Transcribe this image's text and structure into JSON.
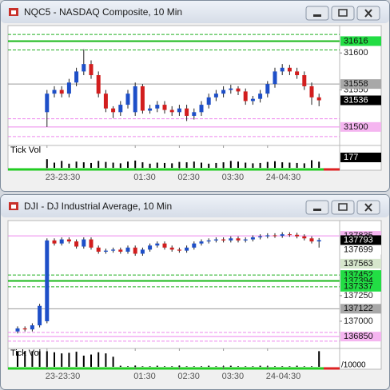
{
  "chart_data": [
    {
      "type": "candlestick",
      "title": "NQC5 - NASDAQ Composite, 10 Min",
      "up_color": "#1e4fc8",
      "down_color": "#d21e1e",
      "ylim": [
        31475,
        31637
      ],
      "yticks": [
        31550,
        31600
      ],
      "xticks": [
        {
          "value": 4,
          "label": "23-23:30"
        },
        {
          "value": 16,
          "label": "01:30"
        },
        {
          "value": 22,
          "label": "02:30"
        },
        {
          "value": 28,
          "label": "03:30"
        },
        {
          "value": 34,
          "label": "24-04:30"
        }
      ],
      "open": [
        null,
        null,
        null,
        null,
        31520,
        31545,
        31550,
        31545,
        31560,
        31575,
        31585,
        31570,
        31545,
        31525,
        31520,
        31530,
        31520,
        31555,
        31522,
        31525,
        31530,
        31523,
        31520,
        31525,
        31515,
        31520,
        31530,
        31540,
        31545,
        31550,
        31552,
        31548,
        31535,
        31538,
        31545,
        31558,
        31575,
        31580,
        31575,
        31570,
        31555,
        31540
      ],
      "high": [
        null,
        null,
        null,
        null,
        31550,
        31555,
        31555,
        31565,
        31580,
        31605,
        31590,
        31575,
        31550,
        31528,
        31535,
        31550,
        31560,
        31558,
        31530,
        31535,
        31535,
        31528,
        31530,
        31530,
        31525,
        31535,
        31545,
        31550,
        31555,
        31557,
        31555,
        31552,
        31542,
        31550,
        31562,
        31580,
        31585,
        31584,
        31580,
        31575,
        31560,
        31545
      ],
      "low": [
        null,
        null,
        null,
        null,
        31500,
        31540,
        31540,
        31540,
        31555,
        31570,
        31565,
        31540,
        31520,
        31512,
        31515,
        31525,
        31515,
        31518,
        31518,
        31520,
        31518,
        31515,
        31515,
        31508,
        31510,
        31515,
        31525,
        31535,
        31540,
        31545,
        31543,
        31530,
        31530,
        31533,
        31540,
        31553,
        31570,
        31570,
        31565,
        31550,
        31530,
        31528
      ],
      "close": [
        null,
        null,
        null,
        null,
        31545,
        31550,
        31545,
        31560,
        31575,
        31585,
        31570,
        31545,
        31525,
        31520,
        31530,
        31545,
        31555,
        31522,
        31525,
        31530,
        31523,
        31520,
        31525,
        31515,
        31520,
        31530,
        31540,
        31545,
        31550,
        31552,
        31548,
        31535,
        31538,
        31545,
        31558,
        31575,
        31580,
        31575,
        31570,
        31555,
        31540,
        31536
      ],
      "levels": [
        {
          "value": 31625,
          "color": "#20b020",
          "style": "dashed",
          "width": 1,
          "show_label": false
        },
        {
          "value": 31616,
          "color": "#18b818",
          "style": "solid",
          "width": 2,
          "show_label": true,
          "label_bg": "#22dd44"
        },
        {
          "value": 31604,
          "color": "#20b020",
          "style": "dashed",
          "width": 1,
          "show_label": false
        },
        {
          "value": 31558,
          "color": "#9a9a9a",
          "style": "solid",
          "width": 1,
          "show_label": true,
          "label_bg": "#a8a8a8"
        },
        {
          "value": 31511,
          "color": "#ee88ee",
          "style": "dashed",
          "width": 1,
          "show_label": false
        },
        {
          "value": 31500,
          "color": "#ee88ee",
          "style": "solid",
          "width": 1,
          "show_label": true,
          "label_bg": "#f5b5f0"
        },
        {
          "value": 31487,
          "color": "#ee88ee",
          "style": "dashed",
          "width": 1,
          "show_label": false
        }
      ],
      "tick_vol": {
        "label": "Tick Vol",
        "color": "#000000",
        "ylim": [
          0,
          600
        ],
        "values": [
          null,
          null,
          null,
          null,
          250,
          150,
          200,
          120,
          180,
          160,
          140,
          200,
          170,
          150,
          130,
          180,
          210,
          160,
          120,
          150,
          140,
          130,
          170,
          160,
          180,
          150,
          120,
          140,
          160,
          200,
          180,
          150,
          130,
          140,
          170,
          190,
          160,
          150,
          140,
          130,
          220,
          177
        ]
      }
    },
    {
      "type": "candlestick",
      "title": "DJI - DJ Industrial Average, 10 Min",
      "up_color": "#1e4fc8",
      "down_color": "#d21e1e",
      "ylim": [
        136734,
        137984
      ],
      "yticks": [
        137000,
        137250
      ],
      "xticks": [
        {
          "value": 4,
          "label": "23-23:30"
        },
        {
          "value": 16,
          "label": "01:30"
        },
        {
          "value": 22,
          "label": "02:30"
        },
        {
          "value": 28,
          "label": "03:30"
        },
        {
          "value": 34,
          "label": "24-04:30"
        }
      ],
      "open": [
        136900,
        136930,
        136920,
        136960,
        137000,
        137790,
        137760,
        137800,
        137780,
        137730,
        137800,
        137720,
        137680,
        137690,
        137700,
        137680,
        137720,
        137660,
        137700,
        137740,
        137760,
        137720,
        137700,
        137690,
        137720,
        137760,
        137780,
        137790,
        137800,
        137790,
        137810,
        137790,
        137800,
        137820,
        137830,
        137840,
        137835,
        137850,
        137845,
        137830,
        137810,
        137780
      ],
      "high": [
        136950,
        136950,
        136980,
        137170,
        137810,
        137810,
        137820,
        137820,
        137800,
        137820,
        137820,
        137740,
        137710,
        137720,
        137720,
        137740,
        137740,
        137720,
        137760,
        137780,
        137780,
        137740,
        137720,
        137740,
        137780,
        137800,
        137810,
        137820,
        137820,
        137830,
        137830,
        137820,
        137840,
        137850,
        137860,
        137860,
        137870,
        137870,
        137865,
        137850,
        137830,
        137813
      ],
      "low": [
        136880,
        136900,
        136900,
        136940,
        136980,
        137740,
        137740,
        137760,
        137710,
        137710,
        137700,
        137660,
        137660,
        137670,
        137660,
        137660,
        137640,
        137640,
        137680,
        137720,
        137700,
        137680,
        137670,
        137670,
        137700,
        137740,
        137760,
        137770,
        137770,
        137770,
        137770,
        137770,
        137780,
        137800,
        137810,
        137815,
        137815,
        137825,
        137810,
        137790,
        137760,
        137720
      ],
      "close": [
        136930,
        136920,
        136960,
        137150,
        137790,
        137760,
        137800,
        137780,
        137730,
        137800,
        137720,
        137680,
        137690,
        137700,
        137680,
        137720,
        137660,
        137700,
        137740,
        137760,
        137720,
        137700,
        137690,
        137720,
        137760,
        137780,
        137790,
        137800,
        137790,
        137810,
        137790,
        137800,
        137820,
        137830,
        137840,
        137835,
        137850,
        137845,
        137830,
        137810,
        137780,
        137793
      ],
      "levels": [
        {
          "value": 137835,
          "color": "#ee88ee",
          "style": "solid",
          "width": 1,
          "show_label": true,
          "label_bg": "#f5b5f0"
        },
        {
          "value": 137699,
          "color": "#ffffff",
          "style": "none",
          "width": 1,
          "show_label": true,
          "label_bg": "#ffffff"
        },
        {
          "value": 137563,
          "color": "#c0c0c0",
          "style": "none",
          "width": 1,
          "show_label": true,
          "label_bg": "#d6e6cc"
        },
        {
          "value": 137452,
          "color": "#20b020",
          "style": "dashed",
          "width": 1,
          "show_label": true,
          "label_bg": "#22dd44"
        },
        {
          "value": 137394,
          "color": "#18b818",
          "style": "solid",
          "width": 2,
          "show_label": true,
          "label_bg": "#22dd44"
        },
        {
          "value": 137337,
          "color": "#20b020",
          "style": "dashed",
          "width": 1,
          "show_label": true,
          "label_bg": "#22dd44"
        },
        {
          "value": 137122,
          "color": "#9a9a9a",
          "style": "solid",
          "width": 1,
          "show_label": true,
          "label_bg": "#a8a8a8"
        },
        {
          "value": 136890,
          "color": "#ee88ee",
          "style": "dashed",
          "width": 1,
          "show_label": false
        },
        {
          "value": 136850,
          "color": "#ee88ee",
          "style": "solid",
          "width": 1,
          "show_label": true,
          "label_bg": "#f5b5f0"
        },
        {
          "value": 136805,
          "color": "#ee88ee",
          "style": "dashed",
          "width": 1,
          "show_label": false
        }
      ],
      "tick_vol": {
        "label": "Tick Vol",
        "unit_label": "/10000",
        "color": "#000000",
        "ylim": [
          0,
          30
        ],
        "values": [
          28,
          28,
          28,
          28,
          28,
          26,
          24,
          25,
          27,
          20,
          22,
          26,
          24,
          18,
          2,
          1,
          2,
          1,
          1,
          2,
          1,
          1,
          2,
          1,
          1,
          1,
          2,
          1,
          1,
          2,
          1,
          1,
          1,
          2,
          1,
          1,
          1,
          1,
          2,
          1,
          1,
          28
        ]
      }
    }
  ]
}
